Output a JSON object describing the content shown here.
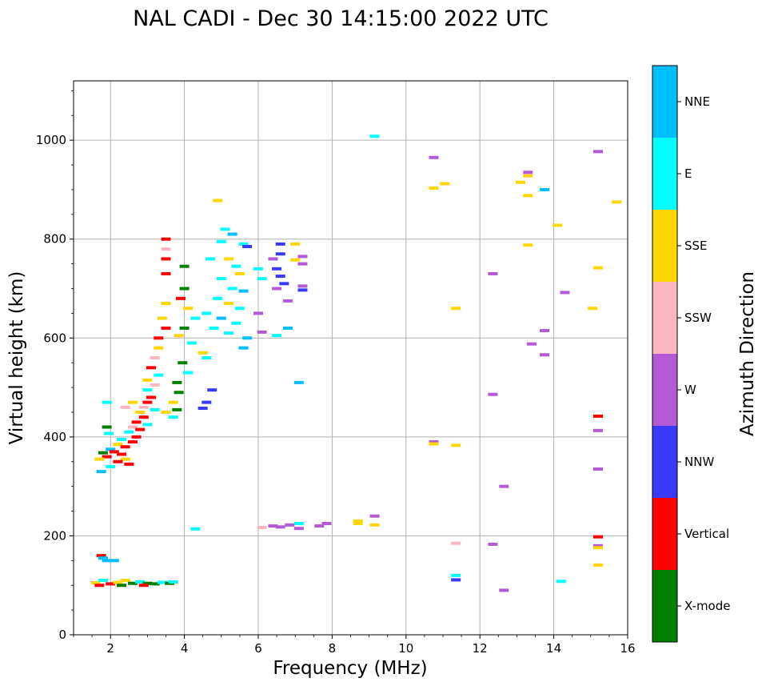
{
  "chart_data": {
    "type": "scatter",
    "title": "NAL CADI - Dec 30 14:15:00 2022 UTC",
    "xlabel": "Frequency (MHz)",
    "ylabel": "Virtual height (km)",
    "xlim": [
      1,
      16
    ],
    "ylim": [
      0,
      1120
    ],
    "xticks": [
      2,
      4,
      6,
      8,
      10,
      12,
      14,
      16
    ],
    "yticks": [
      0,
      200,
      400,
      600,
      800,
      1000
    ],
    "grid": true,
    "colorbar": {
      "label": "Azimuth Direction",
      "categories": [
        {
          "name": "X-mode",
          "color": "#008000"
        },
        {
          "name": "Vertical",
          "color": "#ff0000"
        },
        {
          "name": "NNW",
          "color": "#3a3aff"
        },
        {
          "name": "W",
          "color": "#b45ad6"
        },
        {
          "name": "SSW",
          "color": "#ffb6c1"
        },
        {
          "name": "SSE",
          "color": "#ffd700"
        },
        {
          "name": "E",
          "color": "#00ffff"
        },
        {
          "name": "NNE",
          "color": "#00bfff"
        }
      ]
    },
    "points": [
      {
        "f": 9.15,
        "h": 1008,
        "c": "E"
      },
      {
        "f": 10.75,
        "h": 965,
        "c": "W"
      },
      {
        "f": 10.75,
        "h": 903,
        "c": "SSE"
      },
      {
        "f": 11.05,
        "h": 912,
        "c": "SSE"
      },
      {
        "f": 13.3,
        "h": 935,
        "c": "W"
      },
      {
        "f": 13.3,
        "h": 928,
        "c": "SSE"
      },
      {
        "f": 13.1,
        "h": 915,
        "c": "SSE"
      },
      {
        "f": 13.3,
        "h": 888,
        "c": "SSE"
      },
      {
        "f": 13.75,
        "h": 900,
        "c": "NNE"
      },
      {
        "f": 15.2,
        "h": 977,
        "c": "W"
      },
      {
        "f": 15.7,
        "h": 875,
        "c": "SSE"
      },
      {
        "f": 14.1,
        "h": 828,
        "c": "SSE"
      },
      {
        "f": 13.3,
        "h": 788,
        "c": "SSE"
      },
      {
        "f": 15.2,
        "h": 742,
        "c": "SSE"
      },
      {
        "f": 12.35,
        "h": 730,
        "c": "W"
      },
      {
        "f": 14.3,
        "h": 692,
        "c": "W"
      },
      {
        "f": 15.05,
        "h": 660,
        "c": "SSE"
      },
      {
        "f": 11.35,
        "h": 660,
        "c": "SSE"
      },
      {
        "f": 13.75,
        "h": 615,
        "c": "W"
      },
      {
        "f": 13.4,
        "h": 588,
        "c": "W"
      },
      {
        "f": 13.75,
        "h": 566,
        "c": "W"
      },
      {
        "f": 12.35,
        "h": 486,
        "c": "W"
      },
      {
        "f": 15.2,
        "h": 442,
        "c": "Vertical"
      },
      {
        "f": 15.2,
        "h": 413,
        "c": "W"
      },
      {
        "f": 10.75,
        "h": 390,
        "c": "W"
      },
      {
        "f": 10.75,
        "h": 386,
        "c": "SSE"
      },
      {
        "f": 11.35,
        "h": 383,
        "c": "SSE"
      },
      {
        "f": 15.2,
        "h": 335,
        "c": "W"
      },
      {
        "f": 12.65,
        "h": 300,
        "c": "W"
      },
      {
        "f": 9.15,
        "h": 240,
        "c": "W"
      },
      {
        "f": 9.15,
        "h": 222,
        "c": "SSE"
      },
      {
        "f": 8.7,
        "h": 230,
        "c": "SSE"
      },
      {
        "f": 8.7,
        "h": 225,
        "c": "SSE"
      },
      {
        "f": 7.85,
        "h": 225,
        "c": "W"
      },
      {
        "f": 7.65,
        "h": 220,
        "c": "W"
      },
      {
        "f": 7.1,
        "h": 225,
        "c": "E"
      },
      {
        "f": 7.1,
        "h": 215,
        "c": "W"
      },
      {
        "f": 6.85,
        "h": 222,
        "c": "W"
      },
      {
        "f": 6.6,
        "h": 218,
        "c": "W"
      },
      {
        "f": 6.4,
        "h": 220,
        "c": "W"
      },
      {
        "f": 6.1,
        "h": 217,
        "c": "SSW"
      },
      {
        "f": 15.2,
        "h": 198,
        "c": "Vertical"
      },
      {
        "f": 15.2,
        "h": 180,
        "c": "W"
      },
      {
        "f": 15.2,
        "h": 176,
        "c": "SSE"
      },
      {
        "f": 15.2,
        "h": 141,
        "c": "SSE"
      },
      {
        "f": 11.35,
        "h": 185,
        "c": "SSW"
      },
      {
        "f": 12.35,
        "h": 183,
        "c": "W"
      },
      {
        "f": 11.35,
        "h": 120,
        "c": "E"
      },
      {
        "f": 11.35,
        "h": 111,
        "c": "NNW"
      },
      {
        "f": 14.2,
        "h": 108,
        "c": "E"
      },
      {
        "f": 12.65,
        "h": 90,
        "c": "W"
      },
      {
        "f": 4.3,
        "h": 214,
        "c": "E"
      },
      {
        "f": 4.9,
        "h": 878,
        "c": "SSE"
      },
      {
        "f": 5.1,
        "h": 820,
        "c": "E"
      },
      {
        "f": 5.3,
        "h": 810,
        "c": "NNE"
      },
      {
        "f": 5.0,
        "h": 795,
        "c": "E"
      },
      {
        "f": 5.6,
        "h": 790,
        "c": "E"
      },
      {
        "f": 4.7,
        "h": 760,
        "c": "E"
      },
      {
        "f": 5.2,
        "h": 760,
        "c": "SSE"
      },
      {
        "f": 5.4,
        "h": 745,
        "c": "E"
      },
      {
        "f": 5.5,
        "h": 730,
        "c": "SSE"
      },
      {
        "f": 5.0,
        "h": 720,
        "c": "E"
      },
      {
        "f": 5.3,
        "h": 700,
        "c": "E"
      },
      {
        "f": 5.6,
        "h": 695,
        "c": "NNE"
      },
      {
        "f": 4.9,
        "h": 680,
        "c": "E"
      },
      {
        "f": 5.2,
        "h": 670,
        "c": "SSE"
      },
      {
        "f": 5.5,
        "h": 660,
        "c": "E"
      },
      {
        "f": 4.6,
        "h": 650,
        "c": "E"
      },
      {
        "f": 5.0,
        "h": 640,
        "c": "NNE"
      },
      {
        "f": 5.4,
        "h": 630,
        "c": "E"
      },
      {
        "f": 4.8,
        "h": 620,
        "c": "E"
      },
      {
        "f": 5.2,
        "h": 610,
        "c": "E"
      },
      {
        "f": 5.7,
        "h": 600,
        "c": "NNE"
      },
      {
        "f": 5.6,
        "h": 580,
        "c": "NNE"
      },
      {
        "f": 6.0,
        "h": 740,
        "c": "E"
      },
      {
        "f": 6.1,
        "h": 720,
        "c": "E"
      },
      {
        "f": 6.0,
        "h": 650,
        "c": "W"
      },
      {
        "f": 5.7,
        "h": 785,
        "c": "NNW"
      },
      {
        "f": 6.1,
        "h": 612,
        "c": "W"
      },
      {
        "f": 6.6,
        "h": 790,
        "c": "NNW"
      },
      {
        "f": 6.6,
        "h": 770,
        "c": "NNW"
      },
      {
        "f": 6.4,
        "h": 760,
        "c": "W"
      },
      {
        "f": 6.5,
        "h": 740,
        "c": "NNW"
      },
      {
        "f": 6.6,
        "h": 725,
        "c": "NNW"
      },
      {
        "f": 6.7,
        "h": 710,
        "c": "NNW"
      },
      {
        "f": 6.5,
        "h": 700,
        "c": "W"
      },
      {
        "f": 6.8,
        "h": 675,
        "c": "W"
      },
      {
        "f": 7.0,
        "h": 790,
        "c": "SSE"
      },
      {
        "f": 7.2,
        "h": 765,
        "c": "W"
      },
      {
        "f": 7.0,
        "h": 758,
        "c": "SSE"
      },
      {
        "f": 7.2,
        "h": 750,
        "c": "W"
      },
      {
        "f": 7.2,
        "h": 705,
        "c": "W"
      },
      {
        "f": 7.2,
        "h": 697,
        "c": "NNW"
      },
      {
        "f": 7.1,
        "h": 510,
        "c": "NNE"
      },
      {
        "f": 6.8,
        "h": 620,
        "c": "NNE"
      },
      {
        "f": 6.5,
        "h": 605,
        "c": "E"
      },
      {
        "f": 4.75,
        "h": 495,
        "c": "NNW"
      },
      {
        "f": 4.6,
        "h": 470,
        "c": "NNW"
      },
      {
        "f": 4.5,
        "h": 458,
        "c": "NNW"
      },
      {
        "f": 4.6,
        "h": 560,
        "c": "E"
      },
      {
        "f": 4.5,
        "h": 570,
        "c": "SSE"
      },
      {
        "f": 4.3,
        "h": 640,
        "c": "E"
      },
      {
        "f": 4.0,
        "h": 745,
        "c": "X-mode"
      },
      {
        "f": 4.0,
        "h": 700,
        "c": "X-mode"
      },
      {
        "f": 3.9,
        "h": 680,
        "c": "Vertical"
      },
      {
        "f": 4.1,
        "h": 660,
        "c": "SSE"
      },
      {
        "f": 4.0,
        "h": 620,
        "c": "X-mode"
      },
      {
        "f": 3.85,
        "h": 605,
        "c": "SSE"
      },
      {
        "f": 4.2,
        "h": 590,
        "c": "E"
      },
      {
        "f": 3.95,
        "h": 550,
        "c": "X-mode"
      },
      {
        "f": 4.1,
        "h": 530,
        "c": "E"
      },
      {
        "f": 3.8,
        "h": 510,
        "c": "X-mode"
      },
      {
        "f": 3.85,
        "h": 490,
        "c": "X-mode"
      },
      {
        "f": 3.7,
        "h": 470,
        "c": "SSE"
      },
      {
        "f": 3.8,
        "h": 455,
        "c": "X-mode"
      },
      {
        "f": 3.5,
        "h": 450,
        "c": "SSE"
      },
      {
        "f": 3.7,
        "h": 440,
        "c": "E"
      },
      {
        "f": 3.5,
        "h": 800,
        "c": "Vertical"
      },
      {
        "f": 3.5,
        "h": 780,
        "c": "SSW"
      },
      {
        "f": 3.5,
        "h": 760,
        "c": "Vertical"
      },
      {
        "f": 3.5,
        "h": 730,
        "c": "Vertical"
      },
      {
        "f": 3.5,
        "h": 670,
        "c": "SSE"
      },
      {
        "f": 3.4,
        "h": 640,
        "c": "SSE"
      },
      {
        "f": 3.5,
        "h": 620,
        "c": "Vertical"
      },
      {
        "f": 3.3,
        "h": 600,
        "c": "Vertical"
      },
      {
        "f": 3.3,
        "h": 580,
        "c": "SSE"
      },
      {
        "f": 3.2,
        "h": 560,
        "c": "SSW"
      },
      {
        "f": 3.1,
        "h": 540,
        "c": "Vertical"
      },
      {
        "f": 3.3,
        "h": 525,
        "c": "E"
      },
      {
        "f": 3.0,
        "h": 515,
        "c": "SSE"
      },
      {
        "f": 3.2,
        "h": 505,
        "c": "SSW"
      },
      {
        "f": 3.0,
        "h": 495,
        "c": "E"
      },
      {
        "f": 3.1,
        "h": 480,
        "c": "Vertical"
      },
      {
        "f": 3.0,
        "h": 470,
        "c": "Vertical"
      },
      {
        "f": 2.9,
        "h": 460,
        "c": "SSW"
      },
      {
        "f": 3.2,
        "h": 455,
        "c": "E"
      },
      {
        "f": 2.8,
        "h": 450,
        "c": "SSE"
      },
      {
        "f": 2.9,
        "h": 440,
        "c": "Vertical"
      },
      {
        "f": 2.7,
        "h": 430,
        "c": "Vertical"
      },
      {
        "f": 3.0,
        "h": 425,
        "c": "E"
      },
      {
        "f": 2.6,
        "h": 420,
        "c": "SSW"
      },
      {
        "f": 2.8,
        "h": 415,
        "c": "Vertical"
      },
      {
        "f": 2.5,
        "h": 410,
        "c": "E"
      },
      {
        "f": 2.7,
        "h": 400,
        "c": "Vertical"
      },
      {
        "f": 2.6,
        "h": 390,
        "c": "Vertical"
      },
      {
        "f": 2.3,
        "h": 395,
        "c": "E"
      },
      {
        "f": 2.2,
        "h": 385,
        "c": "SSE"
      },
      {
        "f": 2.4,
        "h": 380,
        "c": "Vertical"
      },
      {
        "f": 2.0,
        "h": 375,
        "c": "NNE"
      },
      {
        "f": 2.1,
        "h": 370,
        "c": "Vertical"
      },
      {
        "f": 1.8,
        "h": 368,
        "c": "X-mode"
      },
      {
        "f": 2.3,
        "h": 365,
        "c": "Vertical"
      },
      {
        "f": 1.9,
        "h": 360,
        "c": "Vertical"
      },
      {
        "f": 2.4,
        "h": 355,
        "c": "SSE"
      },
      {
        "f": 2.2,
        "h": 350,
        "c": "Vertical"
      },
      {
        "f": 1.7,
        "h": 355,
        "c": "SSE"
      },
      {
        "f": 2.0,
        "h": 340,
        "c": "E"
      },
      {
        "f": 1.75,
        "h": 330,
        "c": "NNE"
      },
      {
        "f": 2.5,
        "h": 345,
        "c": "Vertical"
      },
      {
        "f": 2.6,
        "h": 470,
        "c": "SSE"
      },
      {
        "f": 2.4,
        "h": 460,
        "c": "SSW"
      },
      {
        "f": 1.9,
        "h": 470,
        "c": "E"
      },
      {
        "f": 1.9,
        "h": 420,
        "c": "X-mode"
      },
      {
        "f": 1.95,
        "h": 407,
        "c": "E"
      },
      {
        "f": 1.75,
        "h": 160,
        "c": "Vertical"
      },
      {
        "f": 1.8,
        "h": 155,
        "c": "NNE"
      },
      {
        "f": 1.9,
        "h": 150,
        "c": "NNE"
      },
      {
        "f": 2.1,
        "h": 150,
        "c": "NNE"
      },
      {
        "f": 1.6,
        "h": 105,
        "c": "SSE"
      },
      {
        "f": 1.8,
        "h": 110,
        "c": "E"
      },
      {
        "f": 2.0,
        "h": 103,
        "c": "Vertical"
      },
      {
        "f": 2.2,
        "h": 106,
        "c": "SSE"
      },
      {
        "f": 2.4,
        "h": 110,
        "c": "SSE"
      },
      {
        "f": 2.6,
        "h": 104,
        "c": "X-mode"
      },
      {
        "f": 2.8,
        "h": 107,
        "c": "E"
      },
      {
        "f": 3.0,
        "h": 104,
        "c": "X-mode"
      },
      {
        "f": 3.2,
        "h": 103,
        "c": "X-mode"
      },
      {
        "f": 3.4,
        "h": 106,
        "c": "E"
      },
      {
        "f": 3.6,
        "h": 104,
        "c": "X-mode"
      },
      {
        "f": 3.7,
        "h": 107,
        "c": "E"
      },
      {
        "f": 1.7,
        "h": 100,
        "c": "Vertical"
      },
      {
        "f": 2.3,
        "h": 100,
        "c": "X-mode"
      },
      {
        "f": 2.9,
        "h": 100,
        "c": "Vertical"
      }
    ]
  }
}
